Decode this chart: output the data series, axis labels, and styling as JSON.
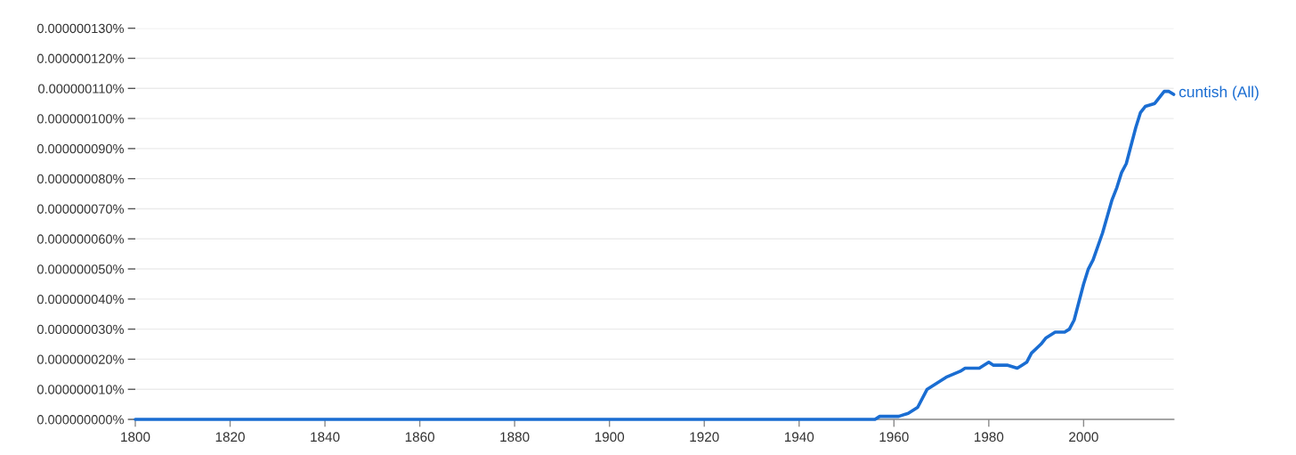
{
  "chart_data": {
    "type": "line",
    "x": [
      1800,
      1956,
      1957,
      1961,
      1963,
      1965,
      1967,
      1969,
      1971,
      1974,
      1975,
      1978,
      1980,
      1981,
      1984,
      1986,
      1987,
      1988,
      1989,
      1991,
      1992,
      1994,
      1996,
      1997,
      1998,
      1999,
      2000,
      2001,
      2002,
      2004,
      2006,
      2007,
      2008,
      2009,
      2010,
      2011,
      2012,
      2013,
      2015,
      2016,
      2017,
      2018,
      2019
    ],
    "series": [
      {
        "name": "cuntish (All)",
        "color": "#1a6dd2",
        "values": [
          0,
          0,
          1e-09,
          1e-09,
          2e-09,
          4e-09,
          1e-08,
          1.2e-08,
          1.4e-08,
          1.6e-08,
          1.7e-08,
          1.7e-08,
          1.9e-08,
          1.8e-08,
          1.8e-08,
          1.7e-08,
          1.8e-08,
          1.9e-08,
          2.2e-08,
          2.5e-08,
          2.7e-08,
          2.9e-08,
          2.9e-08,
          3e-08,
          3.3e-08,
          3.9e-08,
          4.5e-08,
          5e-08,
          5.3e-08,
          6.2e-08,
          7.3e-08,
          7.7e-08,
          8.2e-08,
          8.5e-08,
          9.1e-08,
          9.7e-08,
          1.02e-07,
          1.04e-07,
          1.05e-07,
          1.07e-07,
          1.09e-07,
          1.09e-07,
          1.08e-07
        ]
      }
    ],
    "xlim": [
      1800,
      2019
    ],
    "xticks": [
      1800,
      1820,
      1840,
      1860,
      1880,
      1900,
      1920,
      1940,
      1960,
      1980,
      2000
    ],
    "ylim": [
      0,
      1.3e-07
    ],
    "yticks": [
      {
        "value": 0,
        "label": "0.000000000%"
      },
      {
        "value": 1e-08,
        "label": "0.000000010%"
      },
      {
        "value": 2e-08,
        "label": "0.000000020%"
      },
      {
        "value": 3e-08,
        "label": "0.000000030%"
      },
      {
        "value": 4e-08,
        "label": "0.000000040%"
      },
      {
        "value": 5e-08,
        "label": "0.000000050%"
      },
      {
        "value": 6e-08,
        "label": "0.000000060%"
      },
      {
        "value": 7e-08,
        "label": "0.000000070%"
      },
      {
        "value": 8e-08,
        "label": "0.000000080%"
      },
      {
        "value": 9e-08,
        "label": "0.000000090%"
      },
      {
        "value": 1e-07,
        "label": "0.000000100%"
      },
      {
        "value": 1.1e-07,
        "label": "0.000000110%"
      },
      {
        "value": 1.2e-07,
        "label": "0.000000120%"
      },
      {
        "value": 1.3e-07,
        "label": "0.000000130%"
      }
    ],
    "grid": "y",
    "line_style": "solid"
  }
}
